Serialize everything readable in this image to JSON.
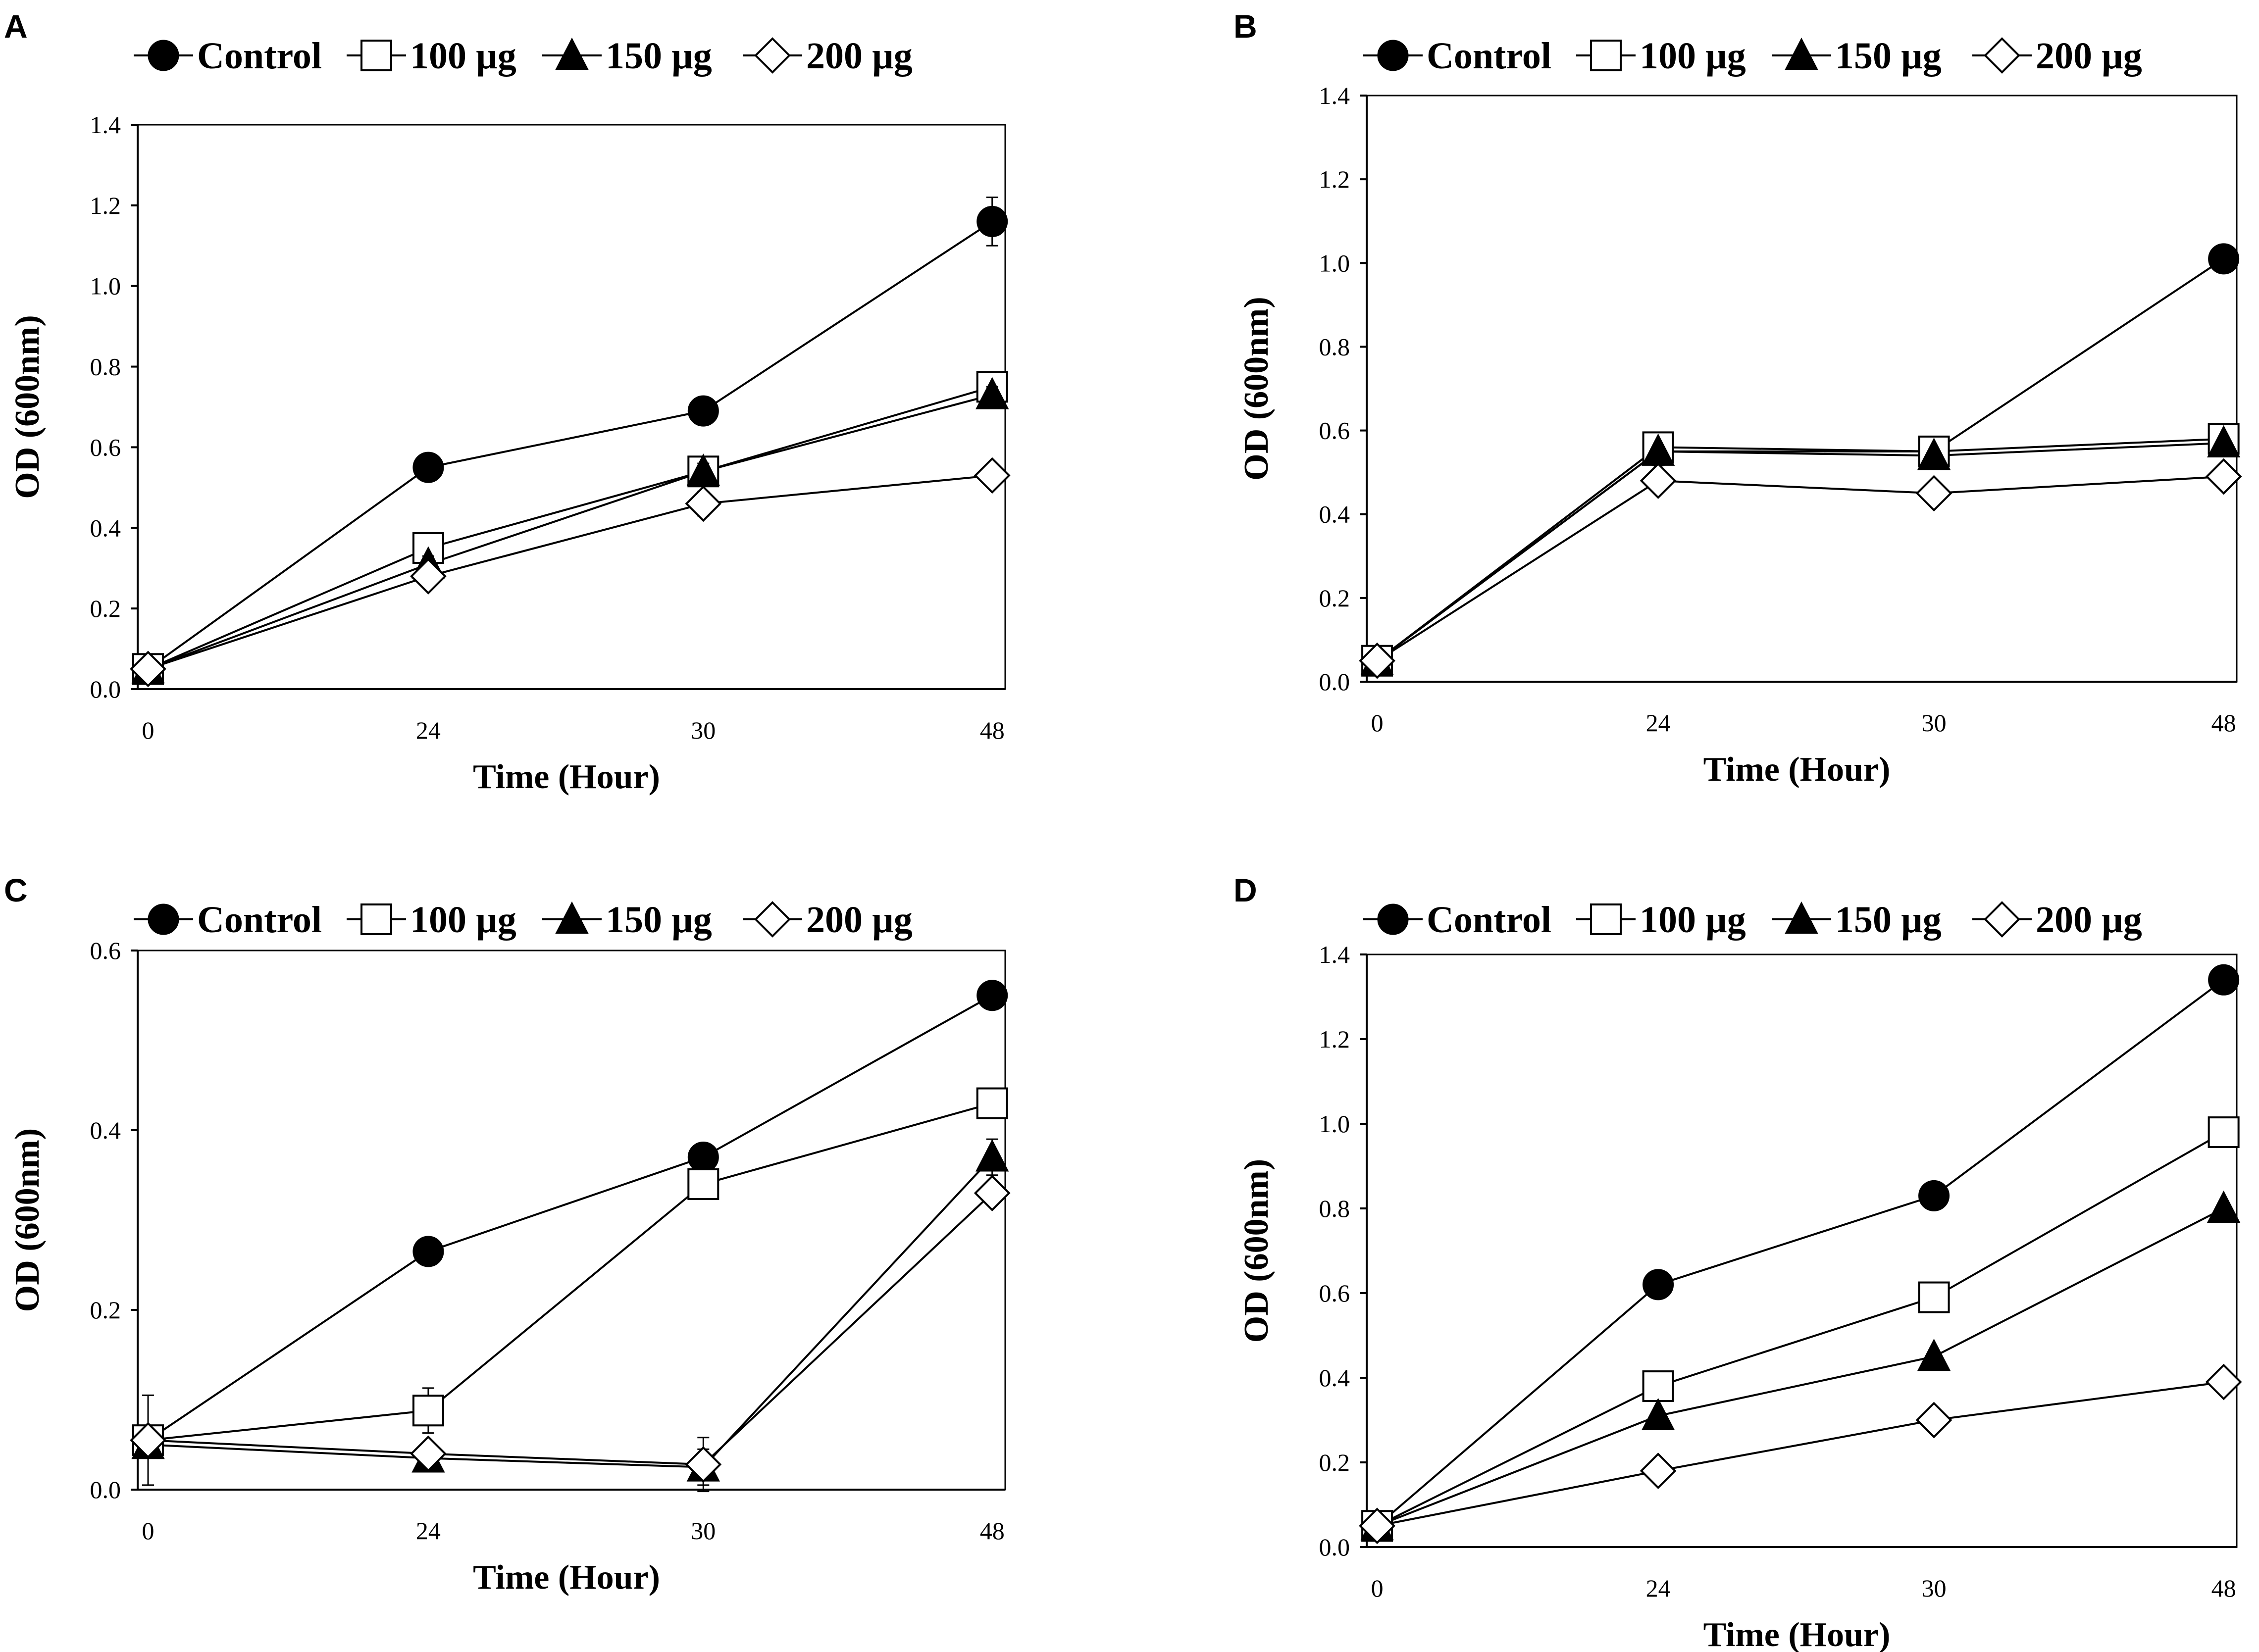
{
  "legend_labels": {
    "control": "Control",
    "g100": "100 µg",
    "g150": "150 µg",
    "g200": "200 µg"
  },
  "colors": {
    "ink": "#000000",
    "background": "#ffffff"
  },
  "chart_data": [
    {
      "panel": "A",
      "type": "line",
      "xlabel": "Time (Hour)",
      "ylabel": "OD (600nm)",
      "categories": [
        "0",
        "24",
        "30",
        "48"
      ],
      "ylim": [
        0,
        1.4
      ],
      "yticks": [
        "0.0",
        "0.2",
        "0.4",
        "0.6",
        "0.8",
        "1.0",
        "1.2",
        "1.4"
      ],
      "series": [
        {
          "name": "Control",
          "marker": "filled-circle",
          "values": [
            0.05,
            0.55,
            0.69,
            1.16
          ],
          "errors": [
            0.01,
            0.01,
            0.01,
            0.06
          ]
        },
        {
          "name": "100 µg",
          "marker": "open-square",
          "values": [
            0.05,
            0.35,
            0.54,
            0.75
          ],
          "errors": [
            0.01,
            0.01,
            0.02,
            0.02
          ]
        },
        {
          "name": "150 µg",
          "marker": "filled-triangle",
          "values": [
            0.05,
            0.31,
            0.54,
            0.73
          ],
          "errors": [
            0.01,
            0.02,
            0.02,
            0.02
          ]
        },
        {
          "name": "200 µg",
          "marker": "open-diamond",
          "values": [
            0.05,
            0.28,
            0.46,
            0.53
          ],
          "errors": [
            0.01,
            0.01,
            0.03,
            0.01
          ]
        }
      ]
    },
    {
      "panel": "B",
      "type": "line",
      "xlabel": "Time (Hour)",
      "ylabel": "OD (600nm)",
      "categories": [
        "0",
        "24",
        "30",
        "48"
      ],
      "ylim": [
        0,
        1.4
      ],
      "yticks": [
        "0.0",
        "0.2",
        "0.4",
        "0.6",
        "0.8",
        "1.0",
        "1.2",
        "1.4"
      ],
      "series": [
        {
          "name": "Control",
          "marker": "filled-circle",
          "values": [
            0.05,
            0.55,
            0.55,
            1.01
          ],
          "errors": [
            0.01,
            0.01,
            0.01,
            0.01
          ]
        },
        {
          "name": "100 µg",
          "marker": "open-square",
          "values": [
            0.05,
            0.56,
            0.55,
            0.58
          ],
          "errors": [
            0.01,
            0.01,
            0.01,
            0.01
          ]
        },
        {
          "name": "150 µg",
          "marker": "filled-triangle",
          "values": [
            0.05,
            0.55,
            0.54,
            0.57
          ],
          "errors": [
            0.01,
            0.01,
            0.01,
            0.01
          ]
        },
        {
          "name": "200 µg",
          "marker": "open-diamond",
          "values": [
            0.05,
            0.48,
            0.45,
            0.49
          ],
          "errors": [
            0.02,
            0.01,
            0.01,
            0.01
          ]
        }
      ]
    },
    {
      "panel": "C",
      "type": "line",
      "xlabel": "Time (Hour)",
      "ylabel": "OD (600nm)",
      "categories": [
        "0",
        "24",
        "30",
        "48"
      ],
      "ylim": [
        0,
        0.6
      ],
      "yticks": [
        "0.0",
        "0.2",
        "0.4",
        "0.6"
      ],
      "series": [
        {
          "name": "Control",
          "marker": "filled-circle",
          "values": [
            0.055,
            0.265,
            0.37,
            0.55
          ],
          "errors": [
            0.05,
            0.005,
            0.005,
            0.005
          ]
        },
        {
          "name": "100 µg",
          "marker": "open-square",
          "values": [
            0.055,
            0.088,
            0.34,
            0.43
          ],
          "errors": [
            0.01,
            0.025,
            0.005,
            0.005
          ]
        },
        {
          "name": "150 µg",
          "marker": "filled-triangle",
          "values": [
            0.05,
            0.035,
            0.025,
            0.37
          ],
          "errors": [
            0.01,
            0.015,
            0.02,
            0.02
          ]
        },
        {
          "name": "200 µg",
          "marker": "open-diamond",
          "values": [
            0.055,
            0.04,
            0.028,
            0.33
          ],
          "errors": [
            0.01,
            0.01,
            0.03,
            0.01
          ]
        }
      ]
    },
    {
      "panel": "D",
      "type": "line",
      "xlabel": "Time (Hour)",
      "ylabel": "OD (600nm)",
      "categories": [
        "0",
        "24",
        "30",
        "48"
      ],
      "ylim": [
        0,
        1.4
      ],
      "yticks": [
        "0.0",
        "0.2",
        "0.4",
        "0.6",
        "0.8",
        "1.0",
        "1.2",
        "1.4"
      ],
      "series": [
        {
          "name": "Control",
          "marker": "filled-circle",
          "values": [
            0.05,
            0.62,
            0.83,
            1.34
          ],
          "errors": [
            0.01,
            0.01,
            0.01,
            0.01
          ]
        },
        {
          "name": "100 µg",
          "marker": "open-square",
          "values": [
            0.05,
            0.38,
            0.59,
            0.98
          ],
          "errors": [
            0.01,
            0.01,
            0.01,
            0.01
          ]
        },
        {
          "name": "150 µg",
          "marker": "filled-triangle",
          "values": [
            0.05,
            0.31,
            0.45,
            0.8
          ],
          "errors": [
            0.01,
            0.01,
            0.01,
            0.01
          ]
        },
        {
          "name": "200 µg",
          "marker": "open-diamond",
          "values": [
            0.05,
            0.18,
            0.3,
            0.39
          ],
          "errors": [
            0.01,
            0.01,
            0.01,
            0.01
          ]
        }
      ]
    }
  ]
}
